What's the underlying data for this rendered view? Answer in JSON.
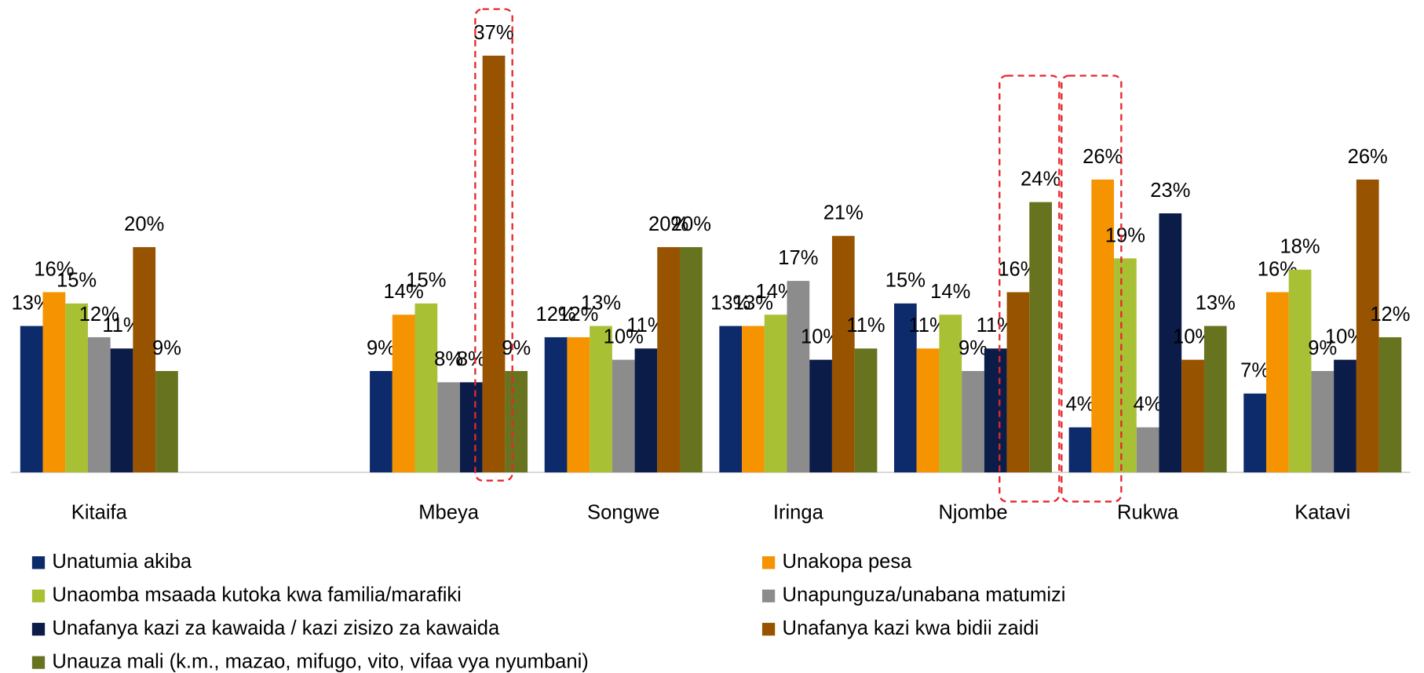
{
  "chart_data": {
    "type": "bar",
    "categories": [
      "Kitaifa",
      null,
      "Mbeya",
      "Songwe",
      "Iringa",
      "Njombe",
      "Rukwa",
      "Katavi"
    ],
    "ylim": [
      0,
      40
    ],
    "series": [
      {
        "name": "Unatumia akiba",
        "color": "#0d2a6b",
        "values": [
          13,
          null,
          9,
          12,
          13,
          15,
          4,
          7
        ],
        "value_labels": [
          "13%",
          null,
          "9%",
          "12%",
          "13%",
          "15%",
          "4%",
          "7%"
        ]
      },
      {
        "name": "Unakopa pesa",
        "color": "#f59300",
        "values": [
          16,
          null,
          14,
          12,
          13,
          11,
          26,
          16
        ],
        "value_labels": [
          "16%",
          null,
          "14%",
          "12%",
          "13%",
          "11%",
          "26%",
          "16%"
        ]
      },
      {
        "name": "Unaomba msaada kutoka kwa familia/marafiki",
        "color": "#a8c034",
        "values": [
          15,
          null,
          15,
          13,
          14,
          14,
          19,
          18
        ],
        "value_labels": [
          "15%",
          null,
          "15%",
          "13%",
          "14%",
          "14%",
          "19%",
          "18%"
        ]
      },
      {
        "name": "Unapunguza/unabana matumizi",
        "color": "#8c8c8c",
        "values": [
          12,
          null,
          8,
          10,
          17,
          9,
          4,
          9
        ],
        "value_labels": [
          "12%",
          null,
          "8%",
          "10%",
          "17%",
          "9%",
          "4%",
          "9%"
        ]
      },
      {
        "name": "Unafanya kazi za kawaida / kazi zisizo za kawaida",
        "color": "#0b1c48",
        "values": [
          11,
          null,
          8,
          11,
          10,
          11,
          23,
          10
        ],
        "value_labels": [
          "11%",
          null,
          "8%",
          "11%",
          "10%",
          "11%",
          "23%",
          "10%"
        ]
      },
      {
        "name": "Unafanya kazi kwa bidii zaidi",
        "color": "#975300",
        "values": [
          20,
          null,
          37,
          20,
          21,
          16,
          10,
          26
        ],
        "value_labels": [
          "20%",
          null,
          "37%",
          "20%",
          "21%",
          "16%",
          "10%",
          "26%"
        ]
      },
      {
        "name": "Unauza mali (k.m., mazao, mifugo, vito, vifaa vya nyumbani)",
        "color": "#68731f",
        "values": [
          9,
          null,
          9,
          20,
          11,
          24,
          13,
          12
        ],
        "value_labels": [
          "9%",
          null,
          "9%",
          "20%",
          "11%",
          "24%",
          "13%",
          "12%"
        ]
      }
    ]
  }
}
